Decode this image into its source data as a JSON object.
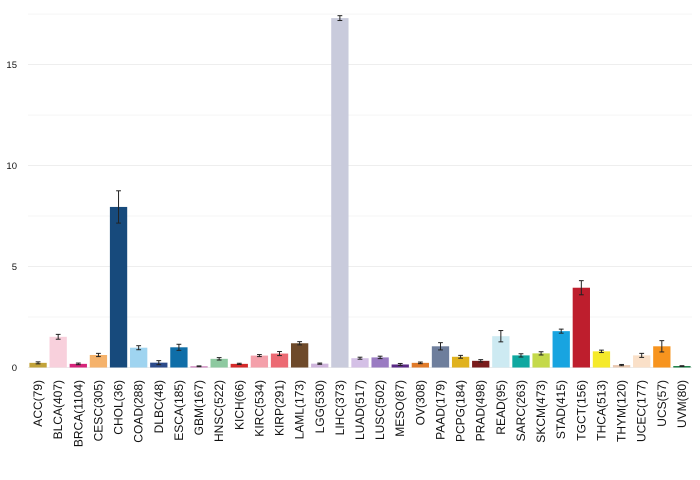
{
  "chart_data": {
    "type": "bar",
    "title": "",
    "xlabel": "",
    "ylabel": "",
    "ylim": [
      0,
      17.8
    ],
    "yticks": [
      0,
      5,
      10,
      15
    ],
    "grid": true,
    "error_bars": true,
    "categories": [
      "ACC(79)",
      "BLCA(407)",
      "BRCA(1104)",
      "CESC(305)",
      "CHOL(36)",
      "COAD(288)",
      "DLBC(48)",
      "ESCA(185)",
      "GBM(167)",
      "HNSC(522)",
      "KICH(66)",
      "KIRC(534)",
      "KIRP(291)",
      "LAML(173)",
      "LGG(530)",
      "LIHC(373)",
      "LUAD(517)",
      "LUSC(502)",
      "MESO(87)",
      "OV(308)",
      "PAAD(179)",
      "PCPG(184)",
      "PRAD(498)",
      "READ(95)",
      "SARC(263)",
      "SKCM(473)",
      "STAD(415)",
      "TGCT(156)",
      "THCA(513)",
      "THYM(120)",
      "UCEC(177)",
      "UCS(57)",
      "UVM(80)"
    ],
    "values": [
      0.23,
      1.52,
      0.18,
      0.62,
      7.95,
      0.98,
      0.24,
      1.0,
      0.06,
      0.43,
      0.18,
      0.59,
      0.69,
      1.2,
      0.19,
      17.3,
      0.46,
      0.5,
      0.15,
      0.23,
      1.05,
      0.53,
      0.33,
      1.55,
      0.6,
      0.7,
      1.8,
      3.95,
      0.8,
      0.12,
      0.6,
      1.05,
      0.07
    ],
    "errors": [
      0.05,
      0.12,
      0.04,
      0.08,
      0.8,
      0.1,
      0.1,
      0.15,
      0.02,
      0.06,
      0.03,
      0.05,
      0.1,
      0.08,
      0.03,
      0.12,
      0.05,
      0.06,
      0.05,
      0.04,
      0.18,
      0.07,
      0.06,
      0.28,
      0.08,
      0.08,
      0.1,
      0.35,
      0.06,
      0.03,
      0.1,
      0.28,
      0.02
    ],
    "colors": [
      "#c2a33a",
      "#f8d0dc",
      "#d6247a",
      "#f5b26b",
      "#174a7c",
      "#9fd4f0",
      "#2c4b8a",
      "#0f6ea8",
      "#c97bb8",
      "#8dc9a0",
      "#d42a2a",
      "#f4a0aa",
      "#ec6a73",
      "#6e4a2a",
      "#cfb5dc",
      "#c9cbdc",
      "#d4c0e6",
      "#9a7bc2",
      "#5a2a86",
      "#e07b2a",
      "#6e7e9c",
      "#e0b21e",
      "#7a1c1c",
      "#cdeaf2",
      "#0fa8a0",
      "#c4d94a",
      "#18a4e0",
      "#be1e2d",
      "#f5ea2a",
      "#e8c8b0",
      "#fae0c8",
      "#f7941e",
      "#0e7a3c"
    ]
  }
}
